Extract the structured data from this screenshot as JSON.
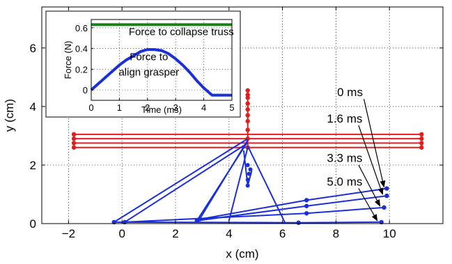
{
  "chart_data": [
    {
      "type": "line",
      "xlabel": "x (cm)",
      "ylabel": "y (cm)",
      "xlim": [
        -3,
        12
      ],
      "ylim": [
        0,
        7.4
      ],
      "xticks": [
        -2,
        0,
        2,
        4,
        6,
        8,
        10
      ],
      "yticks": [
        0,
        2,
        4,
        6
      ],
      "xtick_labels": [
        "−2",
        "0",
        "2",
        "4",
        "6",
        "8",
        "10"
      ],
      "ytick_labels": [
        "0",
        "2",
        "4",
        "6"
      ],
      "grid": "dotted",
      "colors": {
        "truss": "#e21d1d",
        "grasper": "#1b2fd6",
        "arrow": "#000000"
      },
      "truss": {
        "horizontal_y": [
          2.6,
          2.75,
          2.9,
          3.05
        ],
        "x_from": -1.8,
        "x_to": 11.2,
        "vertical_x": 4.7,
        "vertical_nodes_y": [
          2.6,
          2.9,
          3.2,
          3.5,
          3.7,
          3.9,
          4.1,
          4.3,
          4.4,
          4.55
        ]
      },
      "grasper": [
        {
          "label": "0 ms",
          "points": [
            [
              9.9,
              1.2
            ],
            [
              6.9,
              0.8
            ],
            [
              2.9,
              0.15
            ],
            [
              4.7,
              2.85
            ]
          ]
        },
        {
          "label": "1.6 ms",
          "points": [
            [
              9.9,
              0.95
            ],
            [
              6.9,
              0.6
            ],
            [
              2.8,
              0.1
            ],
            [
              4.7,
              2.8
            ]
          ]
        },
        {
          "label": "3.3 ms",
          "points": [
            [
              9.8,
              0.55
            ],
            [
              6.9,
              0.35
            ],
            [
              0.1,
              0.05
            ],
            [
              4.7,
              2.75
            ]
          ]
        },
        {
          "label": "5.0 ms",
          "points": [
            [
              9.7,
              0.05
            ],
            [
              6.6,
              0.03
            ],
            [
              -0.3,
              0.05
            ],
            [
              4.7,
              2.9
            ]
          ]
        }
      ],
      "grasper_extras": [
        [
          [
            4.55,
            2.5
          ],
          [
            4.7,
            1.3
          ],
          [
            4.85,
            1.8
          ]
        ],
        [
          [
            4.7,
            2.6
          ],
          [
            4.0,
            0.1
          ]
        ],
        [
          [
            4.7,
            2.65
          ],
          [
            6.1,
            0.02
          ]
        ]
      ],
      "grasper_drop_nodes": [
        [
          4.7,
          1.3
        ],
        [
          4.7,
          1.5
        ],
        [
          4.75,
          1.7
        ],
        [
          4.8,
          1.85
        ],
        [
          4.7,
          2.0
        ]
      ],
      "annotations": [
        {
          "text": "0 ms",
          "x": 7.9,
          "y": 4.35,
          "tip": [
            9.9,
            1.2
          ]
        },
        {
          "text": "1.6 ms",
          "x": 7.7,
          "y": 3.45,
          "tip": [
            9.85,
            0.95
          ]
        },
        {
          "text": "3.3 ms",
          "x": 7.7,
          "y": 2.1,
          "tip": [
            9.75,
            0.55
          ]
        },
        {
          "text": "5.0 ms",
          "x": 7.7,
          "y": 1.3,
          "tip": [
            9.65,
            0.05
          ]
        }
      ]
    },
    {
      "type": "line",
      "xlabel": "Time (ms)",
      "ylabel": "Force (N)",
      "xlim": [
        0,
        5
      ],
      "ylim": [
        -0.1,
        0.68
      ],
      "xticks": [
        0,
        1,
        2,
        3,
        4,
        5
      ],
      "yticks": [
        0,
        0.2,
        0.4,
        0.6
      ],
      "xtick_labels": [
        "0",
        "1",
        "2",
        "3",
        "4",
        "5"
      ],
      "ytick_labels": [
        "0",
        "0.2",
        "0.4",
        "0.6"
      ],
      "grid": "dotted",
      "series": [
        {
          "name": "Force to collapse truss",
          "color": "#1a7f1a",
          "x": [
            0,
            5
          ],
          "y": [
            0.63,
            0.63
          ]
        },
        {
          "name": "Force to align grasper",
          "color": "#1b2fd6",
          "x": [
            0,
            0.25,
            0.5,
            0.75,
            1.0,
            1.25,
            1.5,
            1.75,
            2.0,
            2.25,
            2.5,
            2.75,
            3.0,
            3.25,
            3.5,
            3.75,
            4.0,
            4.25,
            4.3,
            4.6,
            5.0
          ],
          "y": [
            0.0,
            0.06,
            0.12,
            0.18,
            0.24,
            0.29,
            0.33,
            0.37,
            0.39,
            0.39,
            0.38,
            0.35,
            0.3,
            0.24,
            0.17,
            0.09,
            0.02,
            -0.04,
            -0.05,
            -0.05,
            -0.05
          ]
        }
      ],
      "annotations": [
        {
          "text": "Force to collapse truss",
          "x": 3.2,
          "y": 0.53
        },
        {
          "text": "Force to",
          "x": 2.05,
          "y": 0.285
        },
        {
          "text": "align grasper",
          "x": 2.05,
          "y": 0.14
        }
      ]
    }
  ]
}
